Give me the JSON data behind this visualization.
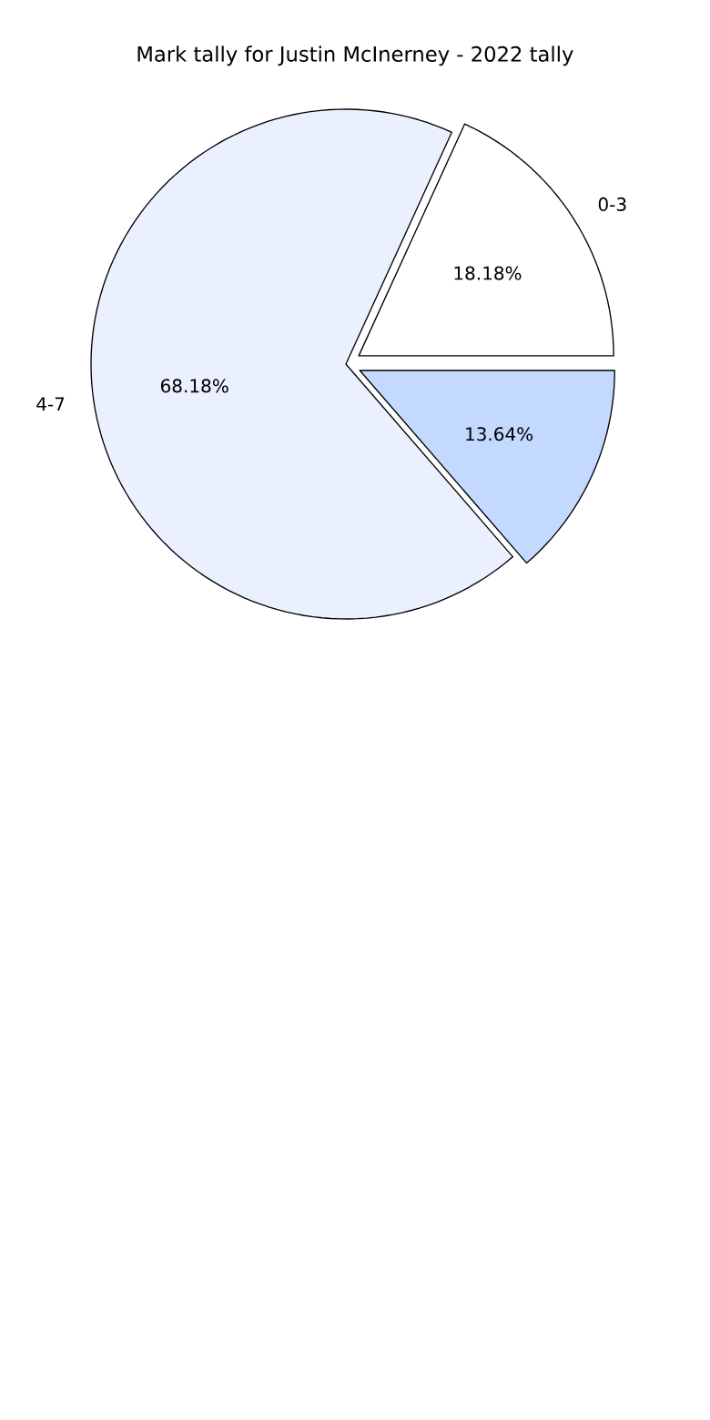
{
  "chart_data": {
    "type": "pie",
    "title": "Mark tally for Justin McInerney - 2022 tally",
    "categories": [
      "0-3",
      "4-7",
      null
    ],
    "values": [
      18.18,
      68.18,
      13.64
    ],
    "colors": [
      "#ffffff",
      "#eaf0fe",
      "#c4d9ff"
    ],
    "data_labels": true,
    "value_labels": [
      "18.18%",
      "68.18%",
      "13.64%"
    ]
  }
}
